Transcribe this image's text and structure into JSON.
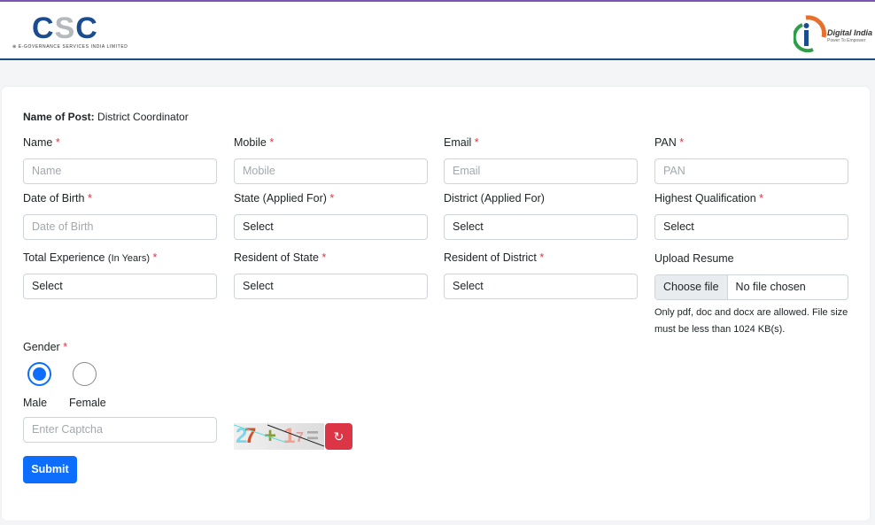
{
  "header": {
    "left_logo": {
      "text": "CSC",
      "tagline": "e-Governance Services India Limited"
    },
    "right_logo": {
      "text": "Digital India",
      "tagline": "Power To Empower"
    }
  },
  "form": {
    "post_label": "Name of Post:",
    "post_value": "District Coordinator",
    "fields": [
      {
        "label": "Name",
        "required": "*",
        "placeholder": "Name"
      },
      {
        "label": "Mobile",
        "required": "*",
        "placeholder": "Mobile"
      },
      {
        "label": "Email",
        "required": "*",
        "placeholder": "Email"
      },
      {
        "label": "PAN",
        "required": "*",
        "placeholder": "PAN"
      },
      {
        "label": "Date of Birth",
        "required": "*",
        "placeholder": "Date of Birth"
      },
      {
        "label": "State (Applied For)",
        "required": "*",
        "value": "Select"
      },
      {
        "label": "District (Applied For)",
        "value": "Select"
      },
      {
        "label": "Highest Qualification",
        "required": "*",
        "value": "Select"
      },
      {
        "label": "Total Experience",
        "label_suffix": "(In Years)",
        "required": "*",
        "value": "Select"
      },
      {
        "label": "Resident of State",
        "required": "*",
        "value": "Select"
      },
      {
        "label": "Resident of District",
        "required": "*",
        "value": "Select"
      }
    ],
    "resume": {
      "label": "Upload Resume",
      "button": "Choose file",
      "status": "No file chosen",
      "help": "Only pdf, doc and docx are allowed. File size must be less than 1024 KB(s)."
    },
    "gender": {
      "label": "Gender",
      "required": "*",
      "options": [
        {
          "label": "Male",
          "selected": true
        },
        {
          "label": "Female",
          "selected": false
        }
      ]
    },
    "captcha": {
      "placeholder": "Enter Captcha",
      "image_text": "27 + 17 =",
      "refresh_icon": "refresh-icon"
    },
    "submit": "Submit"
  },
  "colors": {
    "primary": "#0d6efd",
    "danger": "#dc3545",
    "top_bar": "#7d55b3",
    "header_border": "#1c4b80"
  }
}
